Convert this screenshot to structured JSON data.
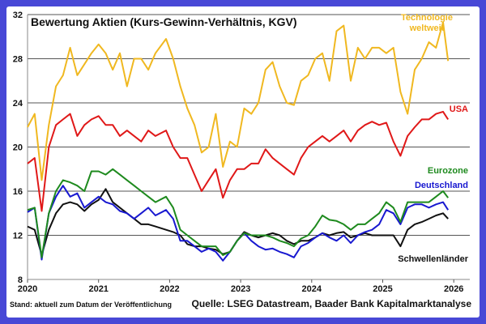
{
  "chart_data": {
    "type": "line",
    "title": "Bewertung Aktien (Kurs-Gewinn-Verhältnis, KGV)",
    "xlabel": "",
    "ylabel": "",
    "xlim": [
      2020,
      2026.25
    ],
    "ylim": [
      8,
      32
    ],
    "grid": "horizontal",
    "xticks": [
      "2020",
      "2021",
      "2022",
      "2023",
      "2024",
      "2025",
      "2026"
    ],
    "yticks": [
      "8",
      "12",
      "16",
      "20",
      "24",
      "28",
      "32"
    ],
    "x": [
      2020.0,
      2020.1,
      2020.2,
      2020.3,
      2020.4,
      2020.5,
      2020.6,
      2020.7,
      2020.8,
      2020.9,
      2021.0,
      2021.1,
      2021.2,
      2021.3,
      2021.4,
      2021.5,
      2021.6,
      2021.7,
      2021.8,
      2021.95,
      2022.05,
      2022.15,
      2022.25,
      2022.35,
      2022.45,
      2022.55,
      2022.65,
      2022.75,
      2022.85,
      2022.95,
      2023.05,
      2023.15,
      2023.25,
      2023.35,
      2023.45,
      2023.55,
      2023.65,
      2023.75,
      2023.85,
      2023.95,
      2024.05,
      2024.15,
      2024.25,
      2024.35,
      2024.45,
      2024.55,
      2024.65,
      2024.75,
      2024.85,
      2024.95,
      2025.05,
      2025.15,
      2025.25,
      2025.35,
      2025.45,
      2025.55,
      2025.65,
      2025.75,
      2025.85,
      2025.92
    ],
    "series": [
      {
        "name": "Technologie weltweit",
        "label_lines": [
          "Technologie",
          "weltweit"
        ],
        "color": "#f0b820",
        "values": [
          21.8,
          23,
          17,
          22,
          25.5,
          26.5,
          29,
          26.5,
          27.5,
          28.5,
          29.3,
          28.5,
          27,
          28.5,
          25.5,
          28,
          28,
          27,
          28.5,
          29.8,
          28,
          25.5,
          23.5,
          22,
          19.5,
          20,
          23,
          18.2,
          20.5,
          20,
          23.5,
          23,
          24,
          27,
          27.7,
          25.5,
          24,
          23.8,
          26,
          26.5,
          28,
          28.5,
          26,
          30.5,
          31,
          26,
          29,
          28,
          29,
          29,
          28.5,
          29,
          25,
          23,
          27,
          28,
          29.5,
          29,
          31.3,
          27.8
        ]
      },
      {
        "name": "USA",
        "label_lines": [
          "USA"
        ],
        "color": "#e01818",
        "values": [
          18.5,
          19,
          14.2,
          20,
          22,
          22.5,
          23,
          21,
          22,
          22.5,
          22.8,
          22,
          22,
          21,
          21.5,
          21,
          20.5,
          21.5,
          21,
          21.5,
          20,
          19,
          19,
          17.5,
          16,
          17,
          18,
          15.4,
          17,
          18,
          18,
          18.5,
          18.5,
          19.8,
          19,
          18.5,
          18,
          17.5,
          19,
          20,
          20.5,
          21,
          20.5,
          21,
          21.5,
          20.5,
          21.5,
          22,
          22.3,
          22,
          22.2,
          20.5,
          19.2,
          21,
          21.8,
          22.5,
          22.5,
          23,
          23.2,
          22.5
        ]
      },
      {
        "name": "Eurozone",
        "label_lines": [
          "Eurozone"
        ],
        "color": "#1e8a1e",
        "values": [
          14.3,
          14.5,
          10,
          14,
          16,
          17,
          16.8,
          16.5,
          16,
          17.8,
          17.8,
          17.5,
          18,
          17.5,
          17,
          16.5,
          16,
          15.5,
          15,
          15.5,
          14.5,
          12.5,
          12,
          11.5,
          11,
          11,
          11,
          10.2,
          10.5,
          11.5,
          12.2,
          12,
          12,
          12,
          11.8,
          11.5,
          11.3,
          11,
          11.7,
          12,
          12.8,
          13.8,
          13.4,
          13.3,
          13,
          12.5,
          13,
          13,
          13.5,
          14,
          15,
          14.5,
          13.2,
          15,
          15,
          15,
          15,
          15.5,
          16,
          15.4
        ]
      },
      {
        "name": "Deutschland",
        "label_lines": [
          "Deutschland"
        ],
        "color": "#1818d0",
        "values": [
          14.1,
          14.5,
          9.8,
          14,
          15.5,
          16.5,
          15.5,
          15.8,
          14.5,
          15,
          15.5,
          15,
          14.8,
          14.2,
          14,
          13.5,
          14,
          14.5,
          13.8,
          14.3,
          13.5,
          11.5,
          11.5,
          11,
          10.5,
          10.8,
          10.5,
          9.7,
          10.5,
          11.5,
          12.2,
          11.5,
          11,
          10.7,
          10.8,
          10.5,
          10.3,
          10,
          11,
          11.3,
          11.8,
          12.2,
          11.8,
          11.5,
          12,
          11.3,
          12,
          12.3,
          12.5,
          13,
          14.3,
          14,
          13,
          14.5,
          14.8,
          14.8,
          14.5,
          14.8,
          15,
          14.3
        ]
      },
      {
        "name": "Schwellenländer",
        "label_lines": [
          "Schwellenländer"
        ],
        "color": "#111111",
        "values": [
          12.8,
          12.5,
          10.2,
          12.5,
          14,
          14.8,
          15,
          14.8,
          14.2,
          14.8,
          15.2,
          16.2,
          15,
          14.5,
          14,
          13.5,
          13,
          13,
          12.8,
          12.5,
          12.3,
          12,
          11.2,
          11,
          11,
          10.8,
          10.7,
          10.3,
          10.5,
          11.5,
          12.3,
          12,
          11.8,
          12,
          12.2,
          12,
          11.5,
          11.2,
          11.5,
          11.5,
          11.8,
          12.2,
          12,
          12.2,
          12.3,
          11.8,
          12,
          12.2,
          12,
          12,
          12,
          12,
          11,
          12.5,
          13,
          13.2,
          13.5,
          13.8,
          14,
          13.5
        ]
      }
    ],
    "footnote": "Stand: aktuell zum Datum der Veröffentlichung",
    "source": "Quelle: LSEG Datastream, Baader Bank Kapitalmarktanalyse"
  }
}
